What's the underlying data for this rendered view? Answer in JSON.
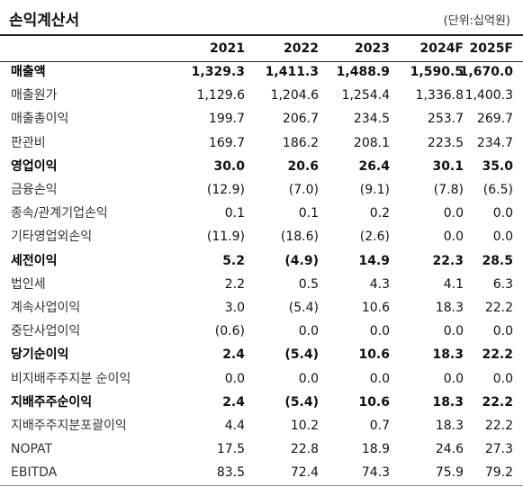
{
  "header": {
    "title": "손익계산서",
    "unit": "(단위:십억원)"
  },
  "table": {
    "columns": [
      "2021",
      "2022",
      "2023",
      "2024F",
      "2025F"
    ],
    "rows": [
      {
        "label": "매출액",
        "values": [
          "1,329.3",
          "1,411.3",
          "1,488.9",
          "1,590.5",
          "1,670.0"
        ],
        "emphasis": true
      },
      {
        "label": "매출원가",
        "values": [
          "1,129.6",
          "1,204.6",
          "1,254.4",
          "1,336.8",
          "1,400.3"
        ],
        "emphasis": false
      },
      {
        "label": "매출총이익",
        "values": [
          "199.7",
          "206.7",
          "234.5",
          "253.7",
          "269.7"
        ],
        "emphasis": false
      },
      {
        "label": "판관비",
        "values": [
          "169.7",
          "186.2",
          "208.1",
          "223.5",
          "234.7"
        ],
        "emphasis": false
      },
      {
        "label": "영업이익",
        "values": [
          "30.0",
          "20.6",
          "26.4",
          "30.1",
          "35.0"
        ],
        "emphasis": true
      },
      {
        "label": "금융손익",
        "values": [
          "(12.9)",
          "(7.0)",
          "(9.1)",
          "(7.8)",
          "(6.5)"
        ],
        "emphasis": false
      },
      {
        "label": "종속/관계기업손익",
        "values": [
          "0.1",
          "0.1",
          "0.2",
          "0.0",
          "0.0"
        ],
        "emphasis": false
      },
      {
        "label": "기타영업외손익",
        "values": [
          "(11.9)",
          "(18.6)",
          "(2.6)",
          "0.0",
          "0.0"
        ],
        "emphasis": false
      },
      {
        "label": "세전이익",
        "values": [
          "5.2",
          "(4.9)",
          "14.9",
          "22.3",
          "28.5"
        ],
        "emphasis": true
      },
      {
        "label": "법인세",
        "values": [
          "2.2",
          "0.5",
          "4.3",
          "4.1",
          "6.3"
        ],
        "emphasis": false
      },
      {
        "label": "계속사업이익",
        "values": [
          "3.0",
          "(5.4)",
          "10.6",
          "18.3",
          "22.2"
        ],
        "emphasis": false
      },
      {
        "label": "중단사업이익",
        "values": [
          "(0.6)",
          "0.0",
          "0.0",
          "0.0",
          "0.0"
        ],
        "emphasis": false
      },
      {
        "label": "당기순이익",
        "values": [
          "2.4",
          "(5.4)",
          "10.6",
          "18.3",
          "22.2"
        ],
        "emphasis": true
      },
      {
        "label": "비지배주주지분 순이익",
        "values": [
          "0.0",
          "0.0",
          "0.0",
          "0.0",
          "0.0"
        ],
        "emphasis": false
      },
      {
        "label": "지배주주순이익",
        "values": [
          "2.4",
          "(5.4)",
          "10.6",
          "18.3",
          "22.2"
        ],
        "emphasis": true
      },
      {
        "label": "지배주주지분포괄이익",
        "values": [
          "4.4",
          "10.2",
          "0.7",
          "18.3",
          "22.2"
        ],
        "emphasis": false
      },
      {
        "label": "NOPAT",
        "values": [
          "17.5",
          "22.8",
          "18.9",
          "24.6",
          "27.3"
        ],
        "emphasis": false
      },
      {
        "label": "EBITDA",
        "values": [
          "83.5",
          "72.4",
          "74.3",
          "75.9",
          "79.2"
        ],
        "emphasis": false
      }
    ]
  }
}
